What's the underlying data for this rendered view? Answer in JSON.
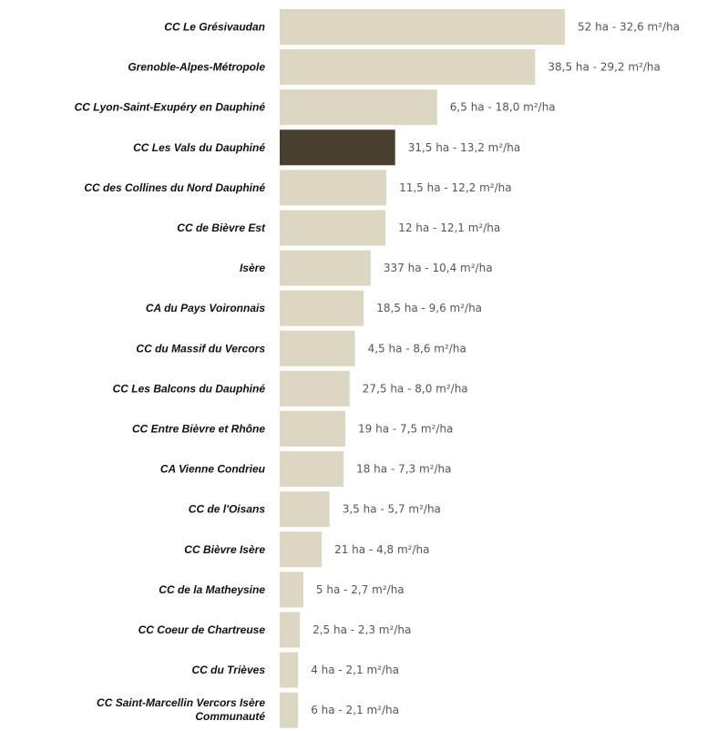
{
  "chart_data": {
    "type": "bar",
    "orientation": "horizontal",
    "unit": "m²/ha",
    "xlim": [
      0,
      32.6
    ],
    "grid": false,
    "legend": "none",
    "colors": {
      "bar": "#dcd7c3",
      "highlight": "#4a4030"
    },
    "categories": [
      "CC Le Grésivaudan",
      "Grenoble-Alpes-Métropole",
      "CC Lyon-Saint-Exupéry en Dauphiné",
      "CC Les Vals du Dauphiné",
      "CC des Collines du Nord Dauphiné",
      "CC de Bièvre Est",
      "Isère",
      "CA du Pays Voironnais",
      "CC du Massif du Vercors",
      "CC Les Balcons du Dauphiné",
      "CC Entre Bièvre et Rhône",
      "CA Vienne Condrieu",
      "CC de l'Oisans",
      "CC Bièvre Isère",
      "CC de la Matheysine",
      "CC Coeur de Chartreuse",
      "CC du Trièves",
      "CC Saint-Marcellin Vercors Isère Communauté"
    ],
    "values": [
      32.6,
      29.2,
      18.0,
      13.2,
      12.2,
      12.1,
      10.4,
      9.6,
      8.6,
      8.0,
      7.5,
      7.3,
      5.7,
      4.8,
      2.7,
      2.3,
      2.1,
      2.1
    ],
    "data_labels": [
      "52 ha - 32,6 m²/ha",
      "38,5 ha - 29,2 m²/ha",
      "6,5 ha - 18,0 m²/ha",
      "31,5 ha - 13,2 m²/ha",
      "11,5 ha - 12,2 m²/ha",
      "12 ha - 12,1 m²/ha",
      "337 ha - 10,4 m²/ha",
      "18,5 ha - 9,6 m²/ha",
      "4,5 ha - 8,6 m²/ha",
      "27,5 ha - 8,0 m²/ha",
      "19 ha - 7,5 m²/ha",
      "18 ha - 7,3 m²/ha",
      "3,5 ha - 5,7 m²/ha",
      "21 ha - 4,8 m²/ha",
      "5 ha - 2,7 m²/ha",
      "2,5 ha - 2,3 m²/ha",
      "4 ha - 2,1 m²/ha",
      "6 ha - 2,1 m²/ha"
    ],
    "highlight_category": "CC Les Vals du Dauphiné"
  }
}
